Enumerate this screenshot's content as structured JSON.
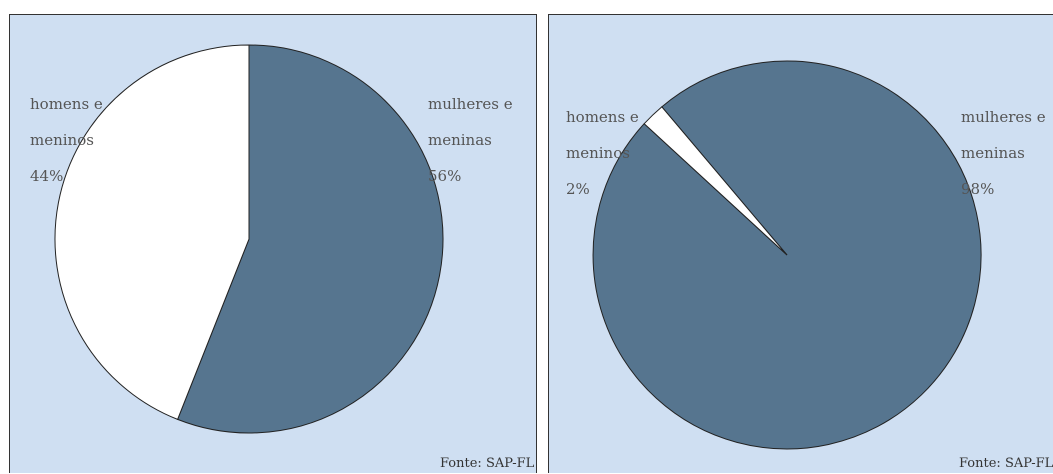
{
  "chart_data": [
    {
      "type": "pie",
      "slices": [
        {
          "label_lines": [
            "mulheres e",
            "meninas",
            "56%"
          ],
          "value": 56,
          "color": "#56758f"
        },
        {
          "label_lines": [
            "homens e",
            "meninos",
            "44%"
          ],
          "value": 44,
          "color": "#ffffff"
        }
      ],
      "source": "Fonte: SAP-FL"
    },
    {
      "type": "pie",
      "slices": [
        {
          "label_lines": [
            "mulheres e",
            "meninas",
            "98%"
          ],
          "value": 98,
          "color": "#56758f"
        },
        {
          "label_lines": [
            "homens e",
            "meninos",
            "2%"
          ],
          "value": 2,
          "color": "#ffffff"
        }
      ],
      "source": "Fonte: SAP-FL"
    }
  ]
}
